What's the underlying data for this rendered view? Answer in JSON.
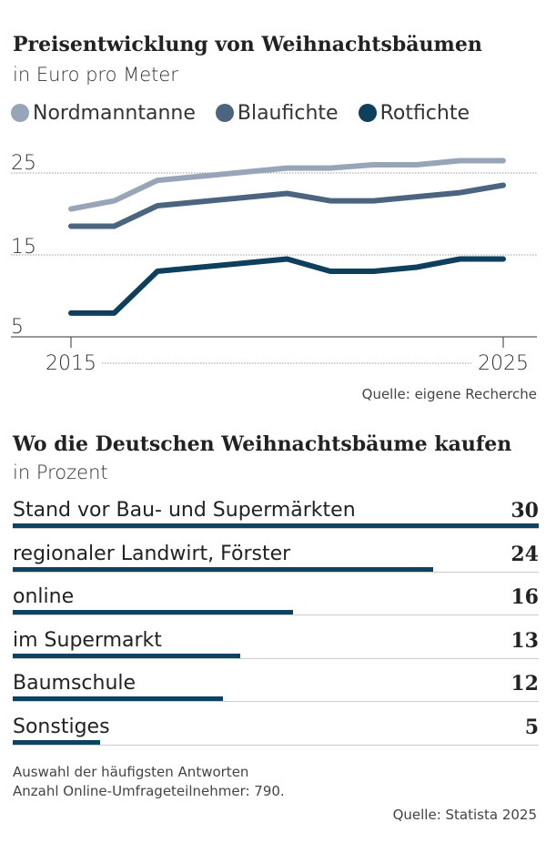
{
  "chart_data": [
    {
      "type": "line",
      "title": "Preisentwicklung von Weihnachtsbäumen",
      "subtitle": "in Euro pro Meter",
      "x": [
        2015,
        2016,
        2017,
        2018,
        2019,
        2020,
        2021,
        2022,
        2023,
        2024,
        2025
      ],
      "x_tick_labels": [
        "2015",
        "2025"
      ],
      "y_tick_labels": [
        "25",
        "15",
        "5"
      ],
      "ylim": [
        5,
        26.5
      ],
      "grid": true,
      "legend": "top",
      "series": [
        {
          "name": "Nordmanntanne",
          "color": "#98a4b8",
          "values": [
            20.6,
            21.6,
            24.1,
            24.6,
            25.1,
            25.6,
            25.6,
            26.0,
            26.0,
            26.5,
            26.5
          ]
        },
        {
          "name": "Blaufichte",
          "color": "#4b6580",
          "values": [
            18.5,
            18.5,
            21.0,
            21.5,
            22.0,
            22.5,
            21.6,
            21.6,
            22.1,
            22.6,
            23.5
          ]
        },
        {
          "name": "Rotfichte",
          "color": "#0e3f5c",
          "values": [
            7.9,
            7.9,
            13.0,
            13.5,
            14.0,
            14.5,
            13.0,
            13.0,
            13.5,
            14.5,
            14.5
          ]
        }
      ],
      "source": "Quelle: eigene Recherche"
    },
    {
      "type": "bar",
      "title": "Wo die Deutschen Weihnachtsbäume kaufen",
      "subtitle": "in Prozent",
      "categories": [
        "Stand vor Bau- und Supermärkten",
        "regionaler Landwirt, Förster",
        "online",
        "im Supermarkt",
        "Baumschule",
        "Sonstiges"
      ],
      "values": [
        "30",
        "24",
        "16",
        "13",
        "12",
        "5"
      ],
      "color": "#0e4261",
      "xlim": [
        0,
        30
      ],
      "notes": [
        "Auswahl der häufigsten Antworten",
        "Anzahl Online-Umfrageteilnehmer: 790."
      ],
      "source": "Quelle: Statista 2025"
    }
  ]
}
